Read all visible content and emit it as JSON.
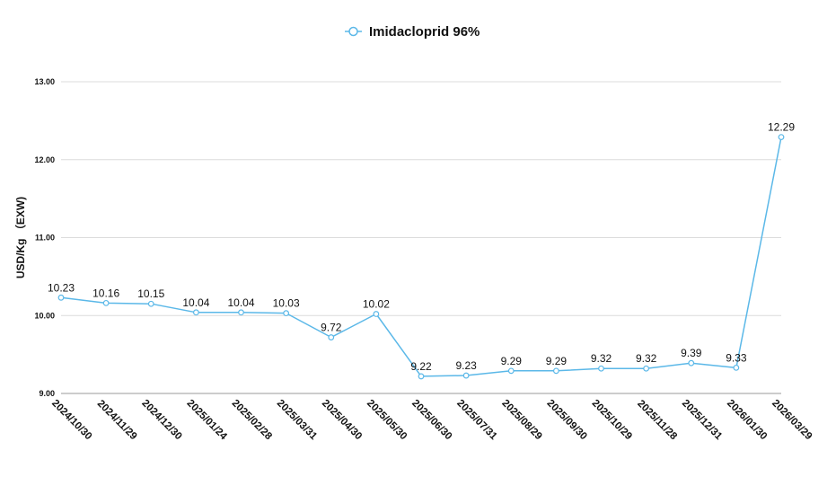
{
  "chart_data": {
    "type": "line",
    "ylabel": "USD/Kg （EXW)",
    "xlabel": "",
    "ylim": [
      9.0,
      13.0
    ],
    "yticks": [
      "9.00",
      "10.00",
      "11.00",
      "12.00",
      "13.00"
    ],
    "grid": true,
    "legend_position": "top-center",
    "series_color": "#5bb8e8",
    "categories": [
      "2024/10/30",
      "2024/11/29",
      "2024/12/30",
      "2025/01/24",
      "2025/02/28",
      "2025/03/31",
      "2025/04/30",
      "2025/05/30",
      "2025/06/30",
      "2025/07/31",
      "2025/08/29",
      "2025/09/30",
      "2025/10/29",
      "2025/11/28",
      "2025/12/31",
      "2026/01/30",
      "2026/03/29"
    ],
    "series": [
      {
        "name": "Imidacloprid 96%",
        "values": [
          10.23,
          10.16,
          10.15,
          10.04,
          10.04,
          10.03,
          9.72,
          10.02,
          9.22,
          9.23,
          9.29,
          9.29,
          9.32,
          9.32,
          9.39,
          9.33,
          12.29
        ],
        "labels": [
          "10.23",
          "10.16",
          "10.15",
          "10.04",
          "10.04",
          "10.03",
          "9.72",
          "10.02",
          "9.22",
          "9.23",
          "9.29",
          "9.29",
          "9.32",
          "9.32",
          "9.39",
          "9.33",
          "12.29"
        ]
      }
    ]
  }
}
